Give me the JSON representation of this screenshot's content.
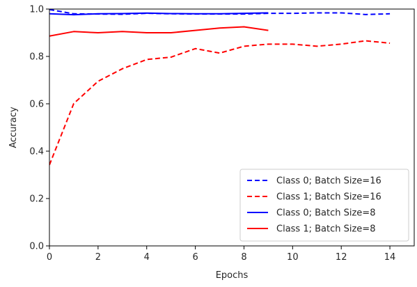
{
  "chart_data": {
    "type": "line",
    "title": "",
    "xlabel": "Epochs",
    "ylabel": "Accuracy",
    "xlim": [
      0,
      15
    ],
    "ylim": [
      0.0,
      1.0
    ],
    "xticks": [
      0,
      2,
      4,
      6,
      8,
      10,
      12,
      14
    ],
    "yticks": [
      0.0,
      0.2,
      0.4,
      0.6,
      0.8,
      1.0
    ],
    "xtick_labels": [
      "0",
      "2",
      "4",
      "6",
      "8",
      "10",
      "12",
      "14"
    ],
    "ytick_labels": [
      "0.0",
      "0.2",
      "0.4",
      "0.6",
      "0.8",
      "1.0"
    ],
    "grid": false,
    "legend_position": "bottom-right",
    "series": [
      {
        "name": "Class 0; Batch Size=16",
        "color": "#0000ff",
        "dash": "dashed",
        "x": [
          0,
          1,
          2,
          3,
          4,
          5,
          6,
          7,
          8,
          9,
          10,
          11,
          12,
          13,
          14
        ],
        "y": [
          0.998,
          0.98,
          0.979,
          0.978,
          0.982,
          0.98,
          0.979,
          0.979,
          0.979,
          0.982,
          0.982,
          0.984,
          0.984,
          0.977,
          0.98
        ]
      },
      {
        "name": "Class 1; Batch Size=16",
        "color": "#ff0000",
        "dash": "dashed",
        "x": [
          0,
          1,
          2,
          3,
          4,
          5,
          6,
          7,
          8,
          9,
          10,
          11,
          12,
          13,
          14
        ],
        "y": [
          0.342,
          0.601,
          0.695,
          0.748,
          0.787,
          0.797,
          0.833,
          0.814,
          0.843,
          0.852,
          0.852,
          0.843,
          0.852,
          0.866,
          0.856
        ]
      },
      {
        "name": "Class 0; Batch Size=8",
        "color": "#0000ff",
        "dash": "solid",
        "x": [
          0,
          1,
          2,
          3,
          4,
          5,
          6,
          7,
          8,
          9
        ],
        "y": [
          0.98,
          0.976,
          0.98,
          0.981,
          0.983,
          0.981,
          0.98,
          0.98,
          0.982,
          0.984
        ]
      },
      {
        "name": "Class 1; Batch Size=8",
        "color": "#ff0000",
        "dash": "solid",
        "x": [
          0,
          1,
          2,
          3,
          4,
          5,
          6,
          7,
          8,
          9
        ],
        "y": [
          0.886,
          0.905,
          0.9,
          0.905,
          0.9,
          0.9,
          0.91,
          0.92,
          0.925,
          0.91
        ]
      }
    ]
  }
}
